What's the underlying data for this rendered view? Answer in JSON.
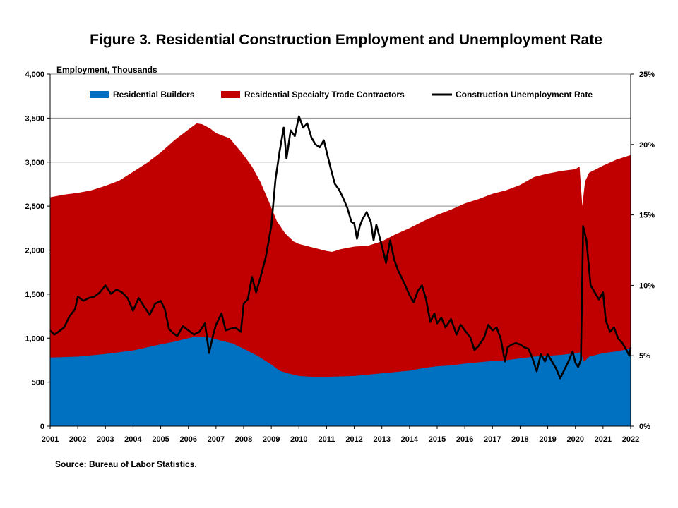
{
  "chart_data": {
    "type": "area",
    "title": "Figure 3. Residential Construction Employment and Unemployment Rate",
    "ylabel": "Employment, Thousands",
    "xlim": [
      2001,
      2022
    ],
    "ylim": [
      0,
      4000
    ],
    "y2lim": [
      0,
      25
    ],
    "x_ticks": [
      "2001",
      "2002",
      "2003",
      "2004",
      "2005",
      "2006",
      "2007",
      "2008",
      "2009",
      "2010",
      "2011",
      "2012",
      "2013",
      "2014",
      "2015",
      "2016",
      "2017",
      "2018",
      "2019",
      "2020",
      "2021",
      "2022"
    ],
    "y_ticks": [
      "0",
      "500",
      "1,000",
      "1,500",
      "2,000",
      "2,500",
      "3,000",
      "3,500",
      "4,000"
    ],
    "y2_ticks": [
      "0%",
      "5%",
      "10%",
      "15%",
      "20%",
      "25%"
    ],
    "grid": true,
    "legend_position": "top",
    "series": [
      {
        "name": "Residential Builders",
        "kind": "area",
        "axis": "left",
        "color": "#0070C0",
        "points": [
          [
            2001.0,
            780
          ],
          [
            2002.0,
            790
          ],
          [
            2003.0,
            820
          ],
          [
            2004.0,
            860
          ],
          [
            2005.0,
            930
          ],
          [
            2005.5,
            960
          ],
          [
            2006.0,
            1000
          ],
          [
            2006.3,
            1020
          ],
          [
            2006.8,
            1005
          ],
          [
            2007.2,
            970
          ],
          [
            2007.6,
            940
          ],
          [
            2008.0,
            880
          ],
          [
            2008.5,
            800
          ],
          [
            2009.0,
            700
          ],
          [
            2009.3,
            630
          ],
          [
            2009.6,
            600
          ],
          [
            2010.0,
            570
          ],
          [
            2010.5,
            560
          ],
          [
            2011.0,
            560
          ],
          [
            2011.5,
            565
          ],
          [
            2012.0,
            570
          ],
          [
            2013.0,
            600
          ],
          [
            2014.0,
            630
          ],
          [
            2014.5,
            660
          ],
          [
            2015.0,
            680
          ],
          [
            2015.5,
            690
          ],
          [
            2016.0,
            710
          ],
          [
            2016.5,
            725
          ],
          [
            2017.0,
            740
          ],
          [
            2017.5,
            750
          ],
          [
            2018.0,
            770
          ],
          [
            2018.5,
            790
          ],
          [
            2019.0,
            800
          ],
          [
            2019.5,
            810
          ],
          [
            2020.0,
            830
          ],
          [
            2020.2,
            840
          ],
          [
            2020.3,
            730
          ],
          [
            2020.5,
            790
          ],
          [
            2021.0,
            830
          ],
          [
            2021.5,
            850
          ],
          [
            2022.0,
            880
          ]
        ]
      },
      {
        "name": "Residential Specialty Trade Contractors",
        "kind": "area",
        "axis": "left",
        "color": "#C00000",
        "stacked_total_points": [
          [
            2001.0,
            2600
          ],
          [
            2001.5,
            2630
          ],
          [
            2002.0,
            2650
          ],
          [
            2002.5,
            2680
          ],
          [
            2003.0,
            2730
          ],
          [
            2003.5,
            2790
          ],
          [
            2004.0,
            2890
          ],
          [
            2004.5,
            2990
          ],
          [
            2005.0,
            3110
          ],
          [
            2005.5,
            3250
          ],
          [
            2006.0,
            3370
          ],
          [
            2006.3,
            3440
          ],
          [
            2006.5,
            3430
          ],
          [
            2006.8,
            3380
          ],
          [
            2007.0,
            3330
          ],
          [
            2007.5,
            3270
          ],
          [
            2008.0,
            3080
          ],
          [
            2008.3,
            2950
          ],
          [
            2008.6,
            2780
          ],
          [
            2008.9,
            2560
          ],
          [
            2009.2,
            2330
          ],
          [
            2009.5,
            2190
          ],
          [
            2009.8,
            2100
          ],
          [
            2010.0,
            2070
          ],
          [
            2010.5,
            2030
          ],
          [
            2011.0,
            1990
          ],
          [
            2011.2,
            1980
          ],
          [
            2011.5,
            2010
          ],
          [
            2012.0,
            2040
          ],
          [
            2012.5,
            2050
          ],
          [
            2013.0,
            2100
          ],
          [
            2013.5,
            2180
          ],
          [
            2014.0,
            2250
          ],
          [
            2014.5,
            2330
          ],
          [
            2015.0,
            2400
          ],
          [
            2015.5,
            2460
          ],
          [
            2016.0,
            2530
          ],
          [
            2016.5,
            2580
          ],
          [
            2017.0,
            2640
          ],
          [
            2017.5,
            2680
          ],
          [
            2018.0,
            2740
          ],
          [
            2018.5,
            2830
          ],
          [
            2019.0,
            2870
          ],
          [
            2019.5,
            2900
          ],
          [
            2020.0,
            2920
          ],
          [
            2020.15,
            2950
          ],
          [
            2020.25,
            2500
          ],
          [
            2020.35,
            2780
          ],
          [
            2020.5,
            2880
          ],
          [
            2021.0,
            2960
          ],
          [
            2021.5,
            3030
          ],
          [
            2022.0,
            3080
          ]
        ]
      },
      {
        "name": "Construction Unemployment Rate",
        "kind": "line",
        "axis": "right",
        "color": "#000000",
        "unit": "%",
        "points": [
          [
            2001.0,
            6.8
          ],
          [
            2001.15,
            6.5
          ],
          [
            2001.3,
            6.7
          ],
          [
            2001.5,
            7.0
          ],
          [
            2001.7,
            7.8
          ],
          [
            2001.9,
            8.3
          ],
          [
            2002.0,
            9.2
          ],
          [
            2002.2,
            8.9
          ],
          [
            2002.4,
            9.1
          ],
          [
            2002.6,
            9.2
          ],
          [
            2002.8,
            9.5
          ],
          [
            2003.0,
            10.0
          ],
          [
            2003.2,
            9.4
          ],
          [
            2003.4,
            9.7
          ],
          [
            2003.6,
            9.5
          ],
          [
            2003.8,
            9.1
          ],
          [
            2004.0,
            8.2
          ],
          [
            2004.2,
            9.1
          ],
          [
            2004.4,
            8.5
          ],
          [
            2004.6,
            7.9
          ],
          [
            2004.8,
            8.7
          ],
          [
            2005.0,
            8.9
          ],
          [
            2005.15,
            8.3
          ],
          [
            2005.3,
            6.9
          ],
          [
            2005.45,
            6.6
          ],
          [
            2005.6,
            6.4
          ],
          [
            2005.8,
            7.1
          ],
          [
            2006.0,
            6.8
          ],
          [
            2006.2,
            6.5
          ],
          [
            2006.4,
            6.7
          ],
          [
            2006.6,
            7.3
          ],
          [
            2006.75,
            5.2
          ],
          [
            2006.9,
            6.5
          ],
          [
            2007.0,
            7.2
          ],
          [
            2007.2,
            8.0
          ],
          [
            2007.35,
            6.8
          ],
          [
            2007.5,
            6.9
          ],
          [
            2007.7,
            7.0
          ],
          [
            2007.9,
            6.7
          ],
          [
            2008.0,
            8.7
          ],
          [
            2008.15,
            9.0
          ],
          [
            2008.3,
            10.6
          ],
          [
            2008.45,
            9.5
          ],
          [
            2008.6,
            10.5
          ],
          [
            2008.8,
            12.0
          ],
          [
            2009.0,
            14.2
          ],
          [
            2009.15,
            17.5
          ],
          [
            2009.3,
            19.5
          ],
          [
            2009.45,
            21.2
          ],
          [
            2009.55,
            19.0
          ],
          [
            2009.7,
            21.0
          ],
          [
            2009.85,
            20.6
          ],
          [
            2010.0,
            22.0
          ],
          [
            2010.15,
            21.2
          ],
          [
            2010.3,
            21.5
          ],
          [
            2010.45,
            20.5
          ],
          [
            2010.6,
            20.0
          ],
          [
            2010.75,
            19.8
          ],
          [
            2010.9,
            20.3
          ],
          [
            2011.0,
            19.5
          ],
          [
            2011.15,
            18.3
          ],
          [
            2011.3,
            17.2
          ],
          [
            2011.45,
            16.8
          ],
          [
            2011.6,
            16.2
          ],
          [
            2011.75,
            15.5
          ],
          [
            2011.9,
            14.5
          ],
          [
            2012.0,
            14.4
          ],
          [
            2012.1,
            13.3
          ],
          [
            2012.2,
            14.2
          ],
          [
            2012.3,
            14.7
          ],
          [
            2012.45,
            15.2
          ],
          [
            2012.6,
            14.5
          ],
          [
            2012.7,
            13.2
          ],
          [
            2012.8,
            14.3
          ],
          [
            2013.0,
            12.8
          ],
          [
            2013.15,
            11.6
          ],
          [
            2013.3,
            13.2
          ],
          [
            2013.45,
            11.8
          ],
          [
            2013.6,
            11.0
          ],
          [
            2013.8,
            10.2
          ],
          [
            2014.0,
            9.3
          ],
          [
            2014.15,
            8.8
          ],
          [
            2014.3,
            9.6
          ],
          [
            2014.45,
            10.0
          ],
          [
            2014.6,
            9.0
          ],
          [
            2014.75,
            7.4
          ],
          [
            2014.9,
            8.0
          ],
          [
            2015.0,
            7.3
          ],
          [
            2015.15,
            7.7
          ],
          [
            2015.3,
            7.0
          ],
          [
            2015.5,
            7.6
          ],
          [
            2015.7,
            6.5
          ],
          [
            2015.85,
            7.2
          ],
          [
            2016.0,
            6.8
          ],
          [
            2016.2,
            6.3
          ],
          [
            2016.35,
            5.4
          ],
          [
            2016.5,
            5.7
          ],
          [
            2016.7,
            6.3
          ],
          [
            2016.85,
            7.2
          ],
          [
            2017.0,
            6.8
          ],
          [
            2017.15,
            7.0
          ],
          [
            2017.3,
            6.2
          ],
          [
            2017.45,
            4.6
          ],
          [
            2017.55,
            5.6
          ],
          [
            2017.7,
            5.8
          ],
          [
            2017.85,
            5.9
          ],
          [
            2018.0,
            5.8
          ],
          [
            2018.15,
            5.6
          ],
          [
            2018.3,
            5.5
          ],
          [
            2018.45,
            4.8
          ],
          [
            2018.6,
            3.9
          ],
          [
            2018.75,
            5.1
          ],
          [
            2018.9,
            4.6
          ],
          [
            2019.0,
            5.1
          ],
          [
            2019.15,
            4.6
          ],
          [
            2019.3,
            4.1
          ],
          [
            2019.45,
            3.4
          ],
          [
            2019.6,
            4.0
          ],
          [
            2019.75,
            4.6
          ],
          [
            2019.9,
            5.3
          ],
          [
            2020.0,
            4.5
          ],
          [
            2020.1,
            4.2
          ],
          [
            2020.2,
            4.7
          ],
          [
            2020.28,
            14.2
          ],
          [
            2020.4,
            13.2
          ],
          [
            2020.55,
            10.0
          ],
          [
            2020.7,
            9.5
          ],
          [
            2020.85,
            9.0
          ],
          [
            2021.0,
            9.5
          ],
          [
            2021.1,
            7.5
          ],
          [
            2021.25,
            6.7
          ],
          [
            2021.4,
            7.0
          ],
          [
            2021.55,
            6.2
          ],
          [
            2021.7,
            5.9
          ],
          [
            2021.85,
            5.4
          ],
          [
            2021.95,
            5.0
          ],
          [
            2022.0,
            5.6
          ]
        ]
      }
    ]
  },
  "source": "Source: Bureau of Labor Statistics."
}
